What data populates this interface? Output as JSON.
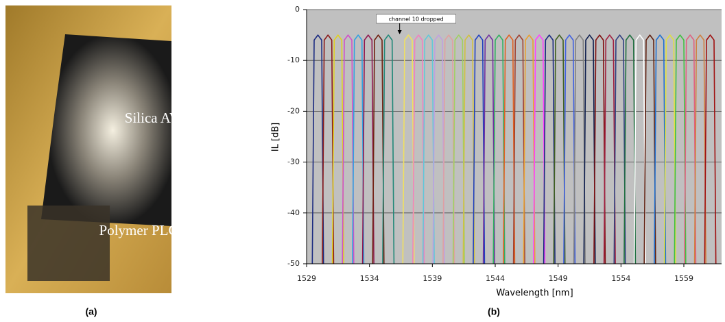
{
  "photo": {
    "labels": [
      "Silica AWG",
      "Polymer PLC"
    ],
    "caption": "(a)"
  },
  "chart_data": {
    "type": "line",
    "xlabel": "Wavelength [nm]",
    "ylabel": "IL [dB]",
    "caption": "(b)",
    "annotation": {
      "text": "channel 10 dropped",
      "x": 1536.4
    },
    "xlim": [
      1529,
      1562
    ],
    "xticks": [
      1529,
      1534,
      1539,
      1544,
      1549,
      1554,
      1559
    ],
    "ylim": [
      -50,
      0
    ],
    "yticks": [
      -50,
      -40,
      -30,
      -20,
      -10,
      0
    ],
    "grid": true,
    "series": [
      {
        "color": "#1a2a80",
        "x": [
          1529.45,
          1529.6,
          1529.9,
          1530.2,
          1530.35
        ],
        "values": [
          -50,
          -6,
          -5,
          -6,
          -50
        ]
      },
      {
        "color": "#8b1a1a",
        "x": [
          1530.25,
          1530.4,
          1530.7,
          1531.0,
          1531.15
        ],
        "values": [
          -50,
          -6,
          -5,
          -6,
          -50
        ]
      },
      {
        "color": "#e0d020",
        "x": [
          1531.05,
          1531.2,
          1531.5,
          1531.8,
          1531.95
        ],
        "values": [
          -50,
          -6,
          -5,
          -6,
          -50
        ]
      },
      {
        "color": "#d050c8",
        "x": [
          1531.85,
          1532.0,
          1532.3,
          1532.6,
          1532.75
        ],
        "values": [
          -50,
          -6,
          -5,
          -6,
          -50
        ]
      },
      {
        "color": "#30a0e0",
        "x": [
          1532.65,
          1532.8,
          1533.1,
          1533.4,
          1533.55
        ],
        "values": [
          -50,
          -6,
          -5,
          -6,
          -50
        ]
      },
      {
        "color": "#901850",
        "x": [
          1533.45,
          1533.6,
          1533.9,
          1534.2,
          1534.35
        ],
        "values": [
          -50,
          -6,
          -5,
          -6,
          -50
        ]
      },
      {
        "color": "#702010",
        "x": [
          1534.25,
          1534.4,
          1534.7,
          1535.0,
          1535.15
        ],
        "values": [
          -50,
          -6,
          -5,
          -6,
          -50
        ]
      },
      {
        "color": "#208878",
        "x": [
          1535.05,
          1535.2,
          1535.5,
          1535.8,
          1535.95
        ],
        "values": [
          -50,
          -6,
          -5,
          -6,
          -50
        ]
      },
      {
        "color": "#f0e060",
        "x": [
          1536.65,
          1536.8,
          1537.1,
          1537.4,
          1537.55
        ],
        "values": [
          -50,
          -6,
          -5,
          -6,
          -50
        ]
      },
      {
        "color": "#f080c0",
        "x": [
          1537.45,
          1537.6,
          1537.9,
          1538.2,
          1538.35
        ],
        "values": [
          -50,
          -6,
          -5,
          -6,
          -50
        ]
      },
      {
        "color": "#60c8d8",
        "x": [
          1538.25,
          1538.4,
          1538.7,
          1539.0,
          1539.15
        ],
        "values": [
          -50,
          -6,
          -5,
          -6,
          -50
        ]
      },
      {
        "color": "#c0a0e0",
        "x": [
          1539.05,
          1539.2,
          1539.5,
          1539.8,
          1539.95
        ],
        "values": [
          -50,
          -6,
          -5,
          -6,
          -50
        ]
      },
      {
        "color": "#e0a0a0",
        "x": [
          1539.85,
          1540.0,
          1540.3,
          1540.6,
          1540.75
        ],
        "values": [
          -50,
          -6,
          -5,
          -6,
          -50
        ]
      },
      {
        "color": "#a0d060",
        "x": [
          1540.65,
          1540.8,
          1541.1,
          1541.4,
          1541.55
        ],
        "values": [
          -50,
          -6,
          -5,
          -6,
          -50
        ]
      },
      {
        "color": "#d0c040",
        "x": [
          1541.45,
          1541.6,
          1541.9,
          1542.2,
          1542.35
        ],
        "values": [
          -50,
          -6,
          -5,
          -6,
          -50
        ]
      },
      {
        "color": "#2040c0",
        "x": [
          1542.25,
          1542.4,
          1542.7,
          1543.0,
          1543.15
        ],
        "values": [
          -50,
          -6,
          -5,
          -6,
          -50
        ]
      },
      {
        "color": "#7030a0",
        "x": [
          1543.05,
          1543.2,
          1543.5,
          1543.8,
          1543.95
        ],
        "values": [
          -50,
          -6,
          -5,
          -6,
          -50
        ]
      },
      {
        "color": "#30b060",
        "x": [
          1543.85,
          1544.0,
          1544.3,
          1544.6,
          1544.75
        ],
        "values": [
          -50,
          -6,
          -5,
          -6,
          -50
        ]
      },
      {
        "color": "#e06020",
        "x": [
          1544.65,
          1544.8,
          1545.1,
          1545.4,
          1545.55
        ],
        "values": [
          -50,
          -6,
          -5,
          -6,
          -50
        ]
      },
      {
        "color": "#a04030",
        "x": [
          1545.45,
          1545.6,
          1545.9,
          1546.2,
          1546.35
        ],
        "values": [
          -50,
          -6,
          -5,
          -6,
          -50
        ]
      },
      {
        "color": "#e8a030",
        "x": [
          1546.25,
          1546.4,
          1546.7,
          1547.0,
          1547.15
        ],
        "values": [
          -50,
          -6,
          -5,
          -6,
          -50
        ]
      },
      {
        "color": "#ff40ff",
        "x": [
          1547.05,
          1547.2,
          1547.5,
          1547.8,
          1547.95
        ],
        "values": [
          -50,
          -6,
          -5,
          -6,
          -50
        ]
      },
      {
        "color": "#1a2a80",
        "x": [
          1547.85,
          1548.0,
          1548.3,
          1548.6,
          1548.75
        ],
        "values": [
          -50,
          -6,
          -5,
          -6,
          -50
        ]
      },
      {
        "color": "#406020",
        "x": [
          1548.65,
          1548.8,
          1549.1,
          1549.4,
          1549.55
        ],
        "values": [
          -50,
          -6,
          -5,
          -6,
          -50
        ]
      },
      {
        "color": "#4060e0",
        "x": [
          1549.45,
          1549.6,
          1549.9,
          1550.2,
          1550.35
        ],
        "values": [
          -50,
          -6,
          -5,
          -6,
          -50
        ]
      },
      {
        "color": "#808080",
        "x": [
          1550.25,
          1550.4,
          1550.7,
          1551.0,
          1551.15
        ],
        "values": [
          -50,
          -6,
          -5,
          -6,
          -50
        ]
      },
      {
        "color": "#102050",
        "x": [
          1551.05,
          1551.2,
          1551.5,
          1551.8,
          1551.95
        ],
        "values": [
          -50,
          -6,
          -5,
          -6,
          -50
        ]
      },
      {
        "color": "#801010",
        "x": [
          1551.85,
          1552.0,
          1552.3,
          1552.6,
          1552.75
        ],
        "values": [
          -50,
          -6,
          -5,
          -6,
          -50
        ]
      },
      {
        "color": "#a02040",
        "x": [
          1552.65,
          1552.8,
          1553.1,
          1553.4,
          1553.55
        ],
        "values": [
          -50,
          -6,
          -5,
          -6,
          -50
        ]
      },
      {
        "color": "#304080",
        "x": [
          1553.45,
          1553.6,
          1553.9,
          1554.2,
          1554.35
        ],
        "values": [
          -50,
          -6,
          -5,
          -6,
          -50
        ]
      },
      {
        "color": "#207040",
        "x": [
          1554.25,
          1554.4,
          1554.7,
          1555.0,
          1555.15
        ],
        "values": [
          -50,
          -6,
          -5,
          -6,
          -50
        ]
      },
      {
        "color": "#ffffff",
        "x": [
          1555.05,
          1555.2,
          1555.5,
          1555.8,
          1555.95
        ],
        "values": [
          -50,
          -6,
          -5,
          -6,
          -50
        ]
      },
      {
        "color": "#602010",
        "x": [
          1555.85,
          1556.0,
          1556.3,
          1556.6,
          1556.75
        ],
        "values": [
          -50,
          -6,
          -5,
          -6,
          -50
        ]
      },
      {
        "color": "#2070d0",
        "x": [
          1556.65,
          1556.8,
          1557.1,
          1557.4,
          1557.55
        ],
        "values": [
          -50,
          -6,
          -5,
          -6,
          -50
        ]
      },
      {
        "color": "#e0e040",
        "x": [
          1557.45,
          1557.6,
          1557.9,
          1558.2,
          1558.35
        ],
        "values": [
          -50,
          -6,
          -5,
          -6,
          -50
        ]
      },
      {
        "color": "#40c040",
        "x": [
          1558.25,
          1558.4,
          1558.7,
          1559.0,
          1559.15
        ],
        "values": [
          -50,
          -6,
          -5,
          -6,
          -50
        ]
      },
      {
        "color": "#e06080",
        "x": [
          1559.05,
          1559.2,
          1559.5,
          1559.8,
          1559.95
        ],
        "values": [
          -50,
          -6,
          -5,
          -6,
          -50
        ]
      },
      {
        "color": "#d08040",
        "x": [
          1559.85,
          1560.0,
          1560.3,
          1560.6,
          1560.75
        ],
        "values": [
          -50,
          -6,
          -5,
          -6,
          -50
        ]
      },
      {
        "color": "#a01010",
        "x": [
          1560.65,
          1560.8,
          1561.1,
          1561.4,
          1561.55
        ],
        "values": [
          -50,
          -6,
          -5,
          -6,
          -50
        ]
      }
    ]
  }
}
